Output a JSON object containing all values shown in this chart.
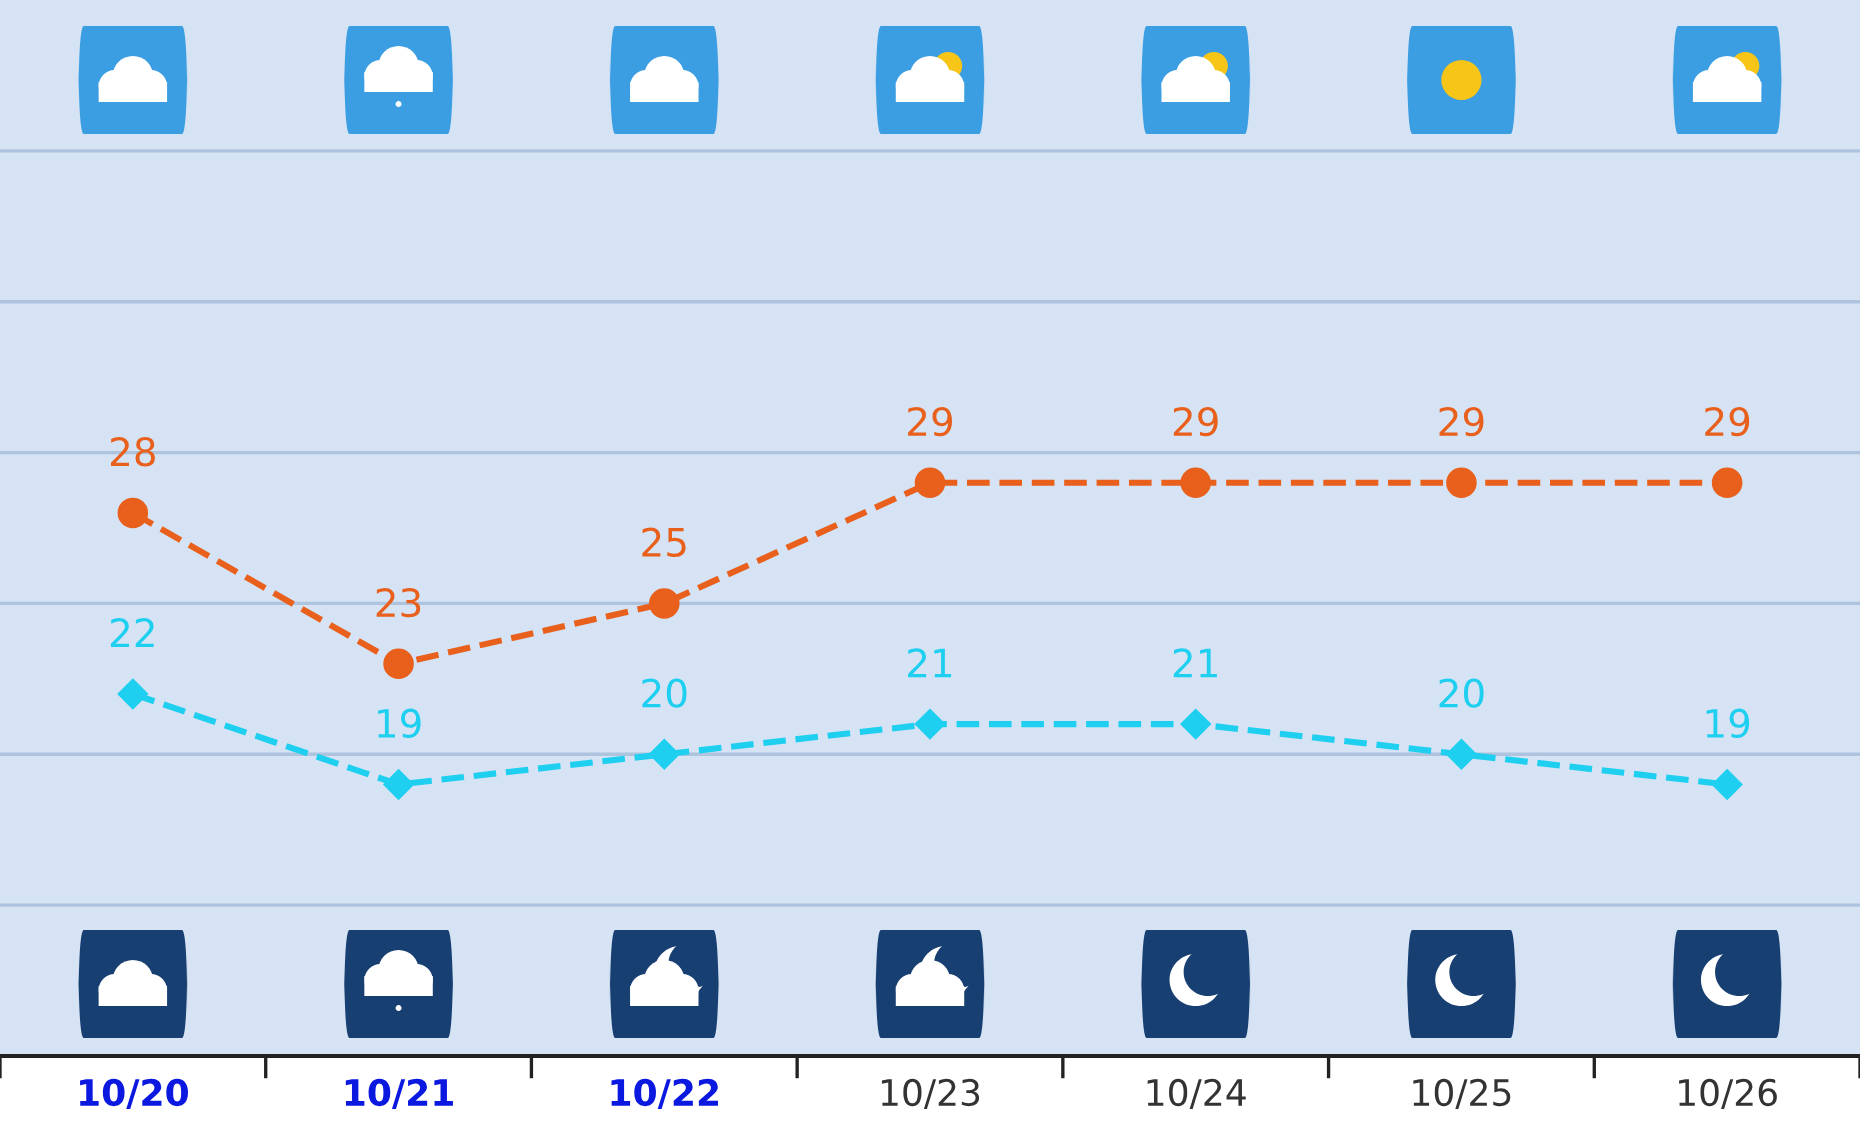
{
  "chart_data": {
    "type": "line",
    "categories": [
      "10/20",
      "10/21",
      "10/22",
      "10/23",
      "10/24",
      "10/25",
      "10/26"
    ],
    "series": [
      {
        "color": "#e8601c",
        "marker": "circle",
        "values": [
          28,
          23,
          25,
          29,
          29,
          29,
          29
        ]
      },
      {
        "color": "#1ecff0",
        "marker": "diamond",
        "values": [
          22,
          19,
          20,
          21,
          21,
          20,
          19
        ]
      }
    ],
    "ylim": [
      10,
      45
    ],
    "yticks": [
      {
        "value": 15,
        "label": null
      },
      {
        "value": 20,
        "label": null
      },
      {
        "value": 25,
        "label": null
      },
      {
        "value": 30,
        "label": null
      },
      {
        "value": 35,
        "label": null
      },
      {
        "value": 40,
        "label": null
      }
    ],
    "grid": "y",
    "legend": false,
    "tick_labels": "x",
    "line_style": "dashed",
    "data_labels": true
  }
}
